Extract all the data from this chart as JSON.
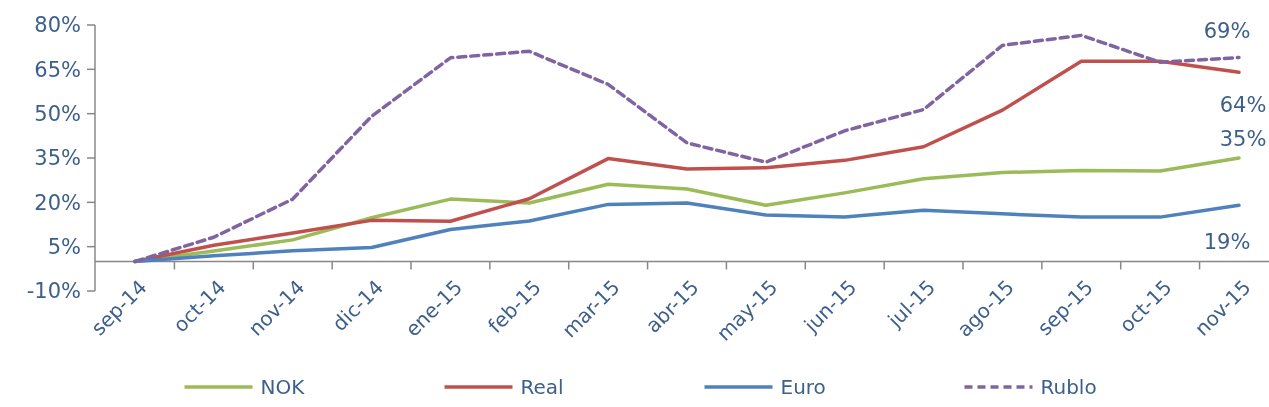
{
  "chart_data": {
    "type": "line",
    "categories": [
      "sep-14",
      "oct-14",
      "nov-14",
      "dic-14",
      "ene-15",
      "feb-15",
      "mar-15",
      "abr-15",
      "may-15",
      "jun-15",
      "jul-15",
      "ago-15",
      "sep-15",
      "oct-15",
      "nov-15"
    ],
    "ylim": [
      -10,
      80
    ],
    "yticks": [
      {
        "value": -10,
        "label": "-10%"
      },
      {
        "value": 5,
        "label": "5%"
      },
      {
        "value": 20,
        "label": "20%"
      },
      {
        "value": 35,
        "label": "35%"
      },
      {
        "value": 50,
        "label": "50%"
      },
      {
        "value": 65,
        "label": "65%"
      },
      {
        "value": 80,
        "label": "80%"
      }
    ],
    "grid": false,
    "legend": "bottom",
    "marker": "none",
    "series": [
      {
        "name": "NOK",
        "color": "#9bbb59",
        "line_style": "solid",
        "values": [
          0,
          3.5,
          7.3,
          14.8,
          21.1,
          19.8,
          26.1,
          24.5,
          19.0,
          23.2,
          28.0,
          30.1,
          30.8,
          30.6,
          35
        ],
        "value_labels": [
          null,
          null,
          null,
          null,
          null,
          null,
          null,
          null,
          null,
          null,
          null,
          null,
          null,
          null,
          "35%"
        ]
      },
      {
        "name": "Real",
        "color": "#c0504d",
        "line_style": "solid",
        "values": [
          0,
          5.5,
          9.6,
          13.9,
          13.6,
          21.2,
          34.8,
          31.3,
          31.7,
          34.2,
          38.8,
          51.2,
          67.7,
          67.7,
          64
        ],
        "value_labels": [
          null,
          null,
          null,
          null,
          null,
          null,
          null,
          null,
          null,
          null,
          null,
          null,
          null,
          null,
          "64%"
        ]
      },
      {
        "name": "Euro",
        "color": "#4f81bd",
        "line_style": "solid",
        "values": [
          0,
          1.9,
          3.6,
          4.7,
          10.8,
          13.7,
          19.3,
          19.8,
          15.7,
          15.0,
          17.3,
          16.1,
          15.0,
          15.0,
          19
        ],
        "value_labels": [
          null,
          null,
          null,
          null,
          null,
          null,
          null,
          null,
          null,
          null,
          null,
          null,
          null,
          null,
          "19%"
        ]
      },
      {
        "name": "Rublo",
        "color": "#8064a2",
        "line_style": "dashed",
        "values": [
          0,
          8.2,
          21.1,
          49.1,
          68.9,
          71.1,
          59.9,
          40.1,
          33.6,
          44.2,
          51.4,
          73.1,
          76.5,
          67.4,
          69
        ],
        "value_labels": [
          null,
          null,
          null,
          null,
          null,
          null,
          null,
          null,
          null,
          null,
          null,
          null,
          null,
          null,
          "69%"
        ]
      }
    ]
  }
}
